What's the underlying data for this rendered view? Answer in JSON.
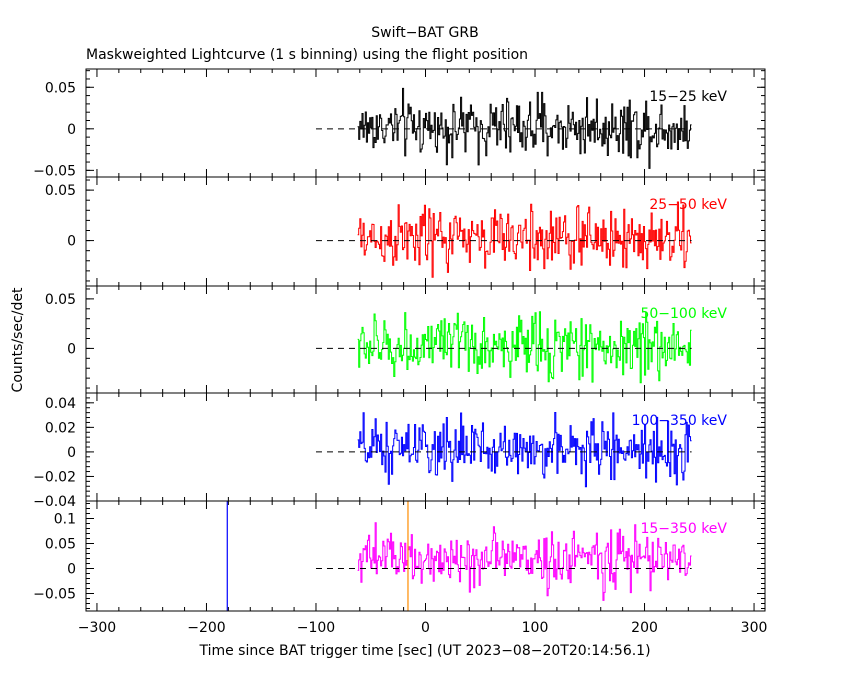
{
  "title": "Swift−BAT GRB",
  "subtitle": "Maskweighted Lightcurve (1 s binning) using the flight position",
  "ylabel": "Counts/sec/det",
  "xlabel": "Time since BAT trigger time [sec] (UT 2023−08−20T20:14:56.1)",
  "x_tick_labels": [
    "−300",
    "−200",
    "−100",
    "0",
    "100",
    "200",
    "300"
  ],
  "chart_data": [
    {
      "type": "line",
      "series_label": "15−25 keV",
      "color": "#000000",
      "xlim": [
        -310,
        310
      ],
      "ylim": [
        -0.058,
        0.072
      ],
      "yticks": [
        -0.05,
        0,
        0.05
      ],
      "ytick_labels": [
        "−0.05",
        "0",
        "0.05"
      ],
      "x_range": [
        -62,
        243
      ],
      "noise_amplitude": 0.018,
      "markers": []
    },
    {
      "type": "line",
      "series_label": "25−50 keV",
      "color": "#ff0000",
      "xlim": [
        -310,
        310
      ],
      "ylim": [
        -0.045,
        0.063
      ],
      "yticks": [
        0,
        0.05
      ],
      "ytick_labels": [
        "0",
        "0.05"
      ],
      "x_range": [
        -62,
        243
      ],
      "noise_amplitude": 0.016,
      "markers": []
    },
    {
      "type": "line",
      "series_label": "50−100 keV",
      "color": "#00ff00",
      "xlim": [
        -310,
        310
      ],
      "ylim": [
        -0.045,
        0.063
      ],
      "yticks": [
        0,
        0.05
      ],
      "ytick_labels": [
        "0",
        "0.05"
      ],
      "x_range": [
        -62,
        243
      ],
      "noise_amplitude": 0.016,
      "markers": []
    },
    {
      "type": "line",
      "series_label": "100−350 keV",
      "color": "#0000ff",
      "xlim": [
        -310,
        310
      ],
      "ylim": [
        -0.04,
        0.048
      ],
      "yticks": [
        -0.04,
        -0.02,
        0,
        0.02,
        0.04
      ],
      "ytick_labels": [
        "−0.04",
        "−0.02",
        "0",
        "0.02",
        "0.04"
      ],
      "x_range": [
        -62,
        243
      ],
      "noise_amplitude": 0.012,
      "markers": []
    },
    {
      "type": "line",
      "series_label": "15−350 keV",
      "color": "#ff00ff",
      "xlim": [
        -310,
        310
      ],
      "ylim": [
        -0.085,
        0.135
      ],
      "yticks": [
        -0.05,
        0,
        0.05,
        0.1
      ],
      "ytick_labels": [
        "−0.05",
        "0",
        "0.05",
        "0.1"
      ],
      "x_range": [
        -62,
        243
      ],
      "noise_amplitude": 0.028,
      "markers": [
        {
          "x": -181,
          "color": "#0000ff"
        },
        {
          "x": -16,
          "color": "#ff8c00"
        }
      ]
    }
  ]
}
